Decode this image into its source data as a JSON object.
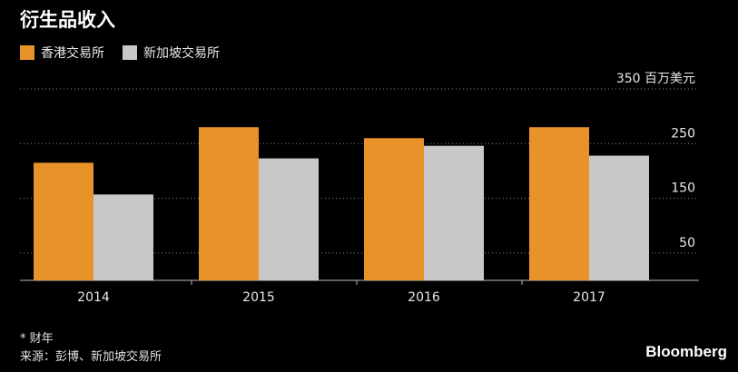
{
  "title": "衍生品收入",
  "footer": {
    "note": "* 财年",
    "source": "来源：彭博、新加坡交易所",
    "brand": "Bloomberg"
  },
  "colors": {
    "hkex": "#e8922a",
    "sgx": "#c8c8c8",
    "grid": "#8a8a8a",
    "axis": "#bbbbbb"
  },
  "chart_data": {
    "type": "bar",
    "title": "衍生品收入",
    "categories": [
      "2014",
      "2015",
      "2016",
      "2017"
    ],
    "series": [
      {
        "name": "香港交易所",
        "values": [
          215,
          280,
          260,
          280
        ]
      },
      {
        "name": "新加坡交易所",
        "values": [
          157,
          223,
          246,
          228
        ]
      }
    ],
    "yticks": [
      "50",
      "150",
      "250",
      "350 百万美元"
    ],
    "ytick_values": [
      50,
      150,
      250,
      350
    ],
    "ylim": [
      0,
      350
    ],
    "ylabel": "百万美元",
    "grid": true,
    "legend_position": "top-left"
  }
}
